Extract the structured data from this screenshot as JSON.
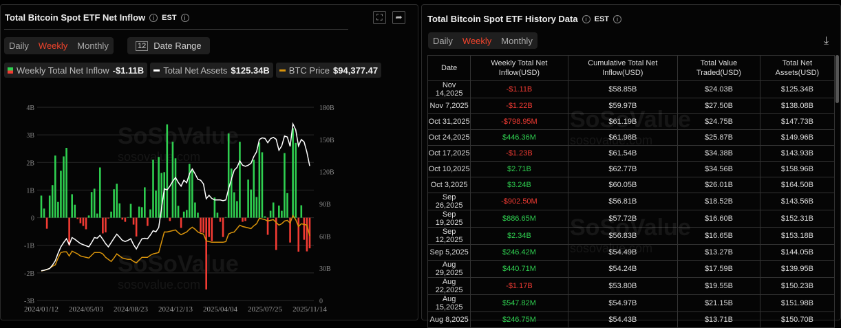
{
  "left": {
    "title": "Total Bitcoin Spot ETF Net Inflow",
    "tz": "EST",
    "tabs": [
      "Daily",
      "Weekly",
      "Monthly"
    ],
    "active_tab": "Weekly",
    "date_range_label": "Date Range",
    "legend": [
      {
        "label": "Weekly Total Net Inflow",
        "value": "-$1.11B"
      },
      {
        "label": "Total Net Assets",
        "value": "$125.34B",
        "color": "#ffffff"
      },
      {
        "label": "BTC Price",
        "value": "$94,377.47",
        "color": "#d9940b"
      }
    ],
    "watermark": "SoSoValue",
    "watermark_url": "sosovalue.com"
  },
  "right": {
    "title": "Total Bitcoin Spot ETF History Data",
    "tz": "EST",
    "tabs": [
      "Daily",
      "Weekly",
      "Monthly"
    ],
    "active_tab": "Weekly",
    "columns": [
      "Date",
      "Weekly Total Net Inflow(USD)",
      "Cumulative Total Net Inflow(USD)",
      "Total Value Traded(USD)",
      "Total Net Assets(USD)"
    ],
    "rows": [
      [
        "Nov 14,2025",
        "-$1.11B",
        "$58.85B",
        "$24.03B",
        "$125.34B"
      ],
      [
        "Nov 7,2025",
        "-$1.22B",
        "$59.97B",
        "$27.50B",
        "$138.08B"
      ],
      [
        "Oct 31,2025",
        "-$798.95M",
        "$61.19B",
        "$24.75B",
        "$147.73B"
      ],
      [
        "Oct 24,2025",
        "$446.36M",
        "$61.98B",
        "$25.87B",
        "$149.96B"
      ],
      [
        "Oct 17,2025",
        "-$1.23B",
        "$61.54B",
        "$34.38B",
        "$143.93B"
      ],
      [
        "Oct 10,2025",
        "$2.71B",
        "$62.77B",
        "$34.56B",
        "$158.96B"
      ],
      [
        "Oct 3,2025",
        "$3.24B",
        "$60.05B",
        "$26.01B",
        "$164.50B"
      ],
      [
        "Sep 26,2025",
        "-$902.50M",
        "$56.81B",
        "$18.52B",
        "$143.56B"
      ],
      [
        "Sep 19,2025",
        "$886.65M",
        "$57.72B",
        "$16.60B",
        "$152.31B"
      ],
      [
        "Sep 12,2025",
        "$2.34B",
        "$56.83B",
        "$16.65B",
        "$153.18B"
      ],
      [
        "Sep 5,2025",
        "$246.42M",
        "$54.49B",
        "$13.27B",
        "$144.05B"
      ],
      [
        "Aug 29,2025",
        "$440.71M",
        "$54.24B",
        "$17.59B",
        "$139.95B"
      ],
      [
        "Aug 22,2025",
        "-$1.17B",
        "$53.80B",
        "$19.55B",
        "$150.23B"
      ],
      [
        "Aug 15,2025",
        "$547.82M",
        "$54.97B",
        "$21.15B",
        "$151.98B"
      ],
      [
        "Aug 8,2025",
        "$246.75M",
        "$54.43B",
        "$13.71B",
        "$150.70B"
      ]
    ]
  },
  "colors": {
    "positive": "#2fcf50",
    "negative": "#f23b33",
    "assets": "#ffffff",
    "btc": "#d9940b",
    "accent": "#f0432b"
  },
  "chart_data": {
    "type": "bar+line",
    "x_ticks": [
      "2024/01/12",
      "2024/05/03",
      "2024/08/23",
      "2024/12/13",
      "2025/04/04",
      "2025/07/25",
      "2025/11/14"
    ],
    "x_start": "2024/01/12",
    "x_end": "2025/11/14",
    "interval": "weekly",
    "y_left_ticks": [
      "4B",
      "3B",
      "2B",
      "1B",
      "0",
      "-1B",
      "-2B",
      "-3B"
    ],
    "y_left_range_B": [
      -3,
      4
    ],
    "y_right_ticks": [
      "180B",
      "150B",
      "120B",
      "90B",
      "60B",
      "30B",
      "0"
    ],
    "y_right_range_B": [
      0,
      180
    ],
    "grid": true,
    "series": [
      {
        "name": "Weekly Total Net Inflow",
        "unit": "B USD",
        "type": "bar",
        "values": [
          0.8,
          0.33,
          -0.4,
          0.8,
          1.18,
          2.25,
          0.57,
          1.7,
          2.22,
          2.53,
          -1.0,
          0.85,
          0.47,
          -0.05,
          -0.2,
          -0.3,
          -0.42,
          0.08,
          0.93,
          1.05,
          0.15,
          1.82,
          -0.57,
          -0.53,
          -0.03,
          0.22,
          1.03,
          1.23,
          0.52,
          -0.07,
          -0.15,
          0.02,
          0.5,
          -0.25,
          -0.68,
          0.4,
          0.38,
          1.1,
          -0.3,
          0.3,
          2.1,
          0.98,
          2.2,
          1.62,
          1.65,
          3.38,
          -0.12,
          2.75,
          2.15,
          0.43,
          -0.37,
          0.22,
          0.28,
          1.95,
          1.73,
          0.55,
          0.18,
          -0.53,
          -0.55,
          -2.6,
          -0.7,
          -0.85,
          0.73,
          0.18,
          -0.15,
          -0.7,
          0.02,
          3.05,
          1.78,
          0.92,
          0.6,
          2.75,
          -0.15,
          -0.12,
          1.38,
          1.02,
          2.1,
          0.75,
          2.72,
          2.37,
          0.05,
          -0.62,
          0.25,
          0.55,
          -1.17,
          0.44,
          0.25,
          2.34,
          0.89,
          -0.9,
          3.24,
          2.71,
          -1.23,
          0.45,
          -0.8,
          -1.22,
          -1.11
        ]
      },
      {
        "name": "Total Net Assets",
        "unit": "B USD",
        "type": "line",
        "values": [
          27.7,
          28.2,
          29,
          29.8,
          33,
          37,
          44,
          50,
          54,
          57.5,
          52,
          58.6,
          57,
          55,
          53,
          52,
          51,
          50,
          54,
          58.6,
          58,
          60.7,
          57,
          53,
          50,
          54,
          58,
          61.8,
          59,
          56,
          55,
          56,
          57.5,
          52,
          48,
          53,
          57.5,
          58,
          57.5,
          61,
          65,
          64,
          68,
          86,
          104,
          103,
          106.5,
          111,
          114.6,
          110,
          106.5,
          112,
          109.7,
          118,
          122.5,
          118,
          113,
          112,
          108.6,
          94.8,
          98,
          95,
          93.7,
          93.7,
          93.7,
          93,
          93.7,
          104,
          113,
          121.4,
          124,
          130,
          126,
          125,
          126,
          127.8,
          134,
          138.5,
          150,
          151.5,
          151,
          147,
          150.7,
          151.98,
          150.23,
          139.95,
          144.05,
          153.18,
          152.31,
          143.56,
          164.5,
          158.96,
          143.93,
          149.96,
          147.73,
          138.08,
          125.34
        ]
      },
      {
        "name": "BTC Price",
        "unit": "K USD",
        "type": "line",
        "values": [
          43,
          44,
          45,
          47,
          50,
          52,
          62,
          70,
          71,
          71,
          65,
          72,
          70,
          68,
          65,
          64,
          63,
          62,
          66,
          70,
          70,
          70,
          68,
          63,
          60,
          57,
          62,
          68,
          65,
          62,
          61,
          60,
          60,
          57,
          55,
          59,
          63,
          63,
          63,
          66,
          68,
          69,
          70,
          85,
          100,
          100,
          101,
          102,
          103,
          99,
          96,
          98,
          100,
          104,
          107,
          104,
          100,
          98,
          97,
          87,
          86,
          85,
          85,
          85,
          85,
          85,
          86,
          97,
          99,
          100,
          105,
          110,
          108,
          107,
          106,
          105,
          109,
          112,
          120,
          119,
          118,
          116,
          117,
          118,
          114,
          110,
          112,
          116,
          117,
          113,
          124,
          118,
          108,
          112,
          111,
          110,
          94.377
        ]
      }
    ]
  }
}
